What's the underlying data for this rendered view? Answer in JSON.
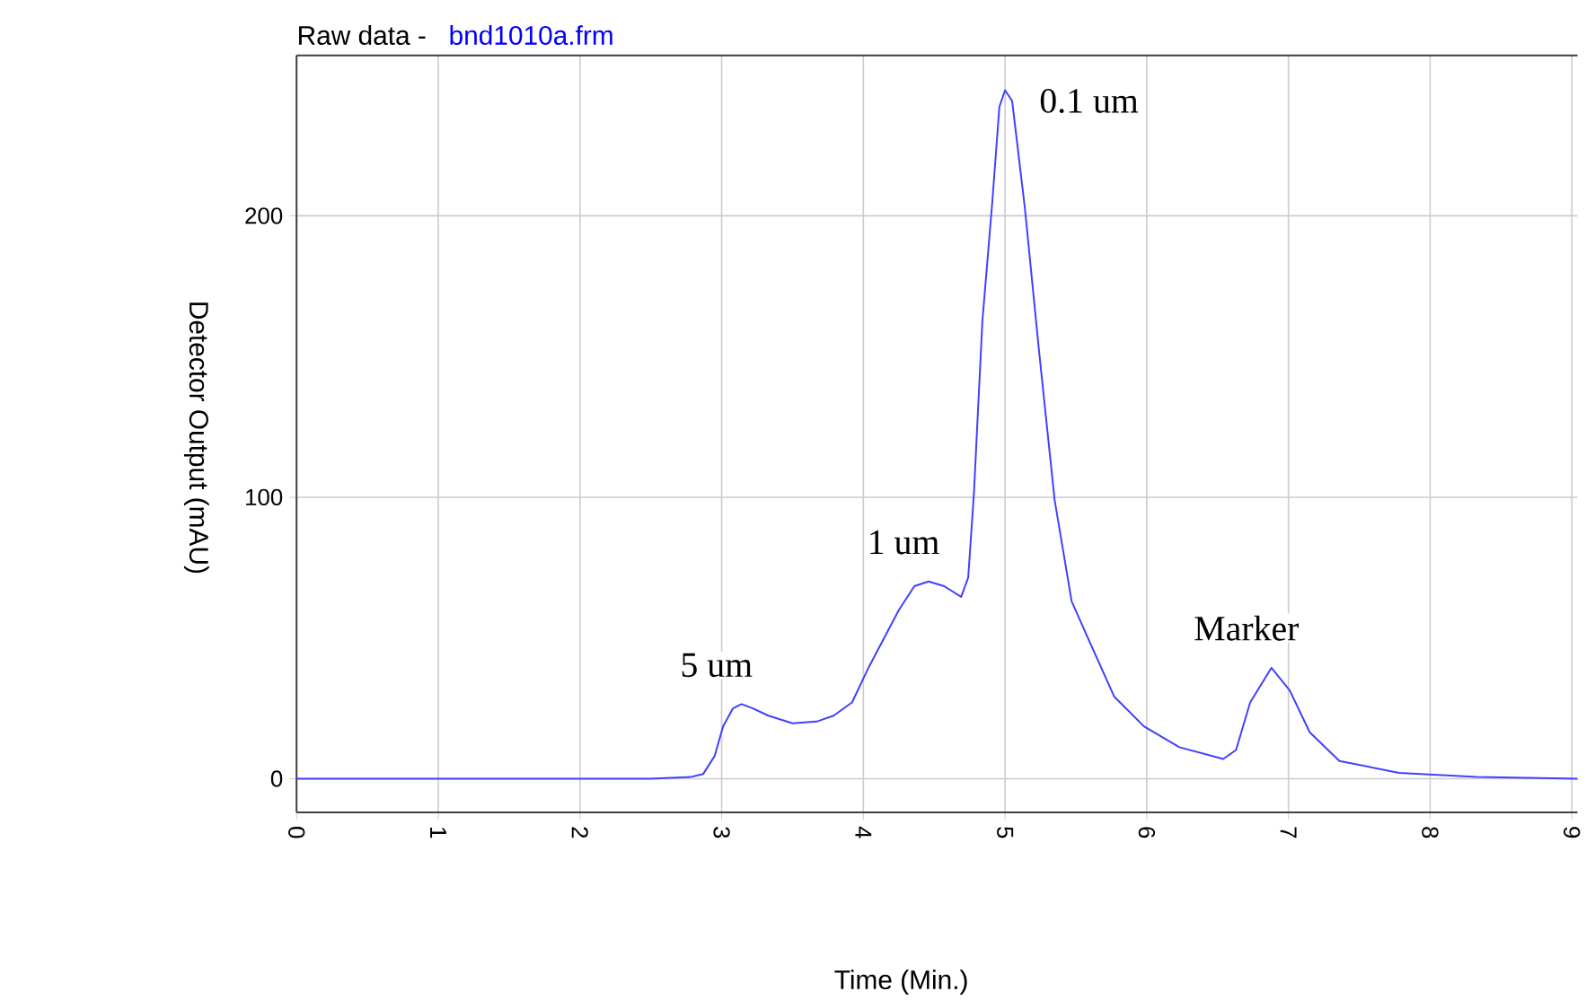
{
  "chart_data": {
    "type": "line",
    "title": "Raw data -",
    "subtitle": "bnd1010a.frm",
    "xlabel": "Time (Min.)",
    "ylabel": "Detector Output (mAU)",
    "series": [
      {
        "color": "#4040ff",
        "x": [
          0,
          2.5,
          2.78,
          2.87,
          2.95,
          3.01,
          3.08,
          3.14,
          3.22,
          3.33,
          3.5,
          3.67,
          3.79,
          3.92,
          4.04,
          4.25,
          4.36,
          4.46,
          4.57,
          4.69,
          4.74,
          4.78,
          4.84,
          4.91,
          4.96,
          5.0,
          5.05,
          5.14,
          5.24,
          5.35,
          5.47,
          5.6,
          5.77,
          5.98,
          6.23,
          6.54,
          6.63,
          6.73,
          6.88,
          7.01,
          7.15,
          7.36,
          7.78,
          8.33,
          9.04
        ],
        "values": [
          0,
          0,
          0.6,
          1.7,
          8,
          18.6,
          25,
          26.5,
          25,
          22.4,
          19.7,
          20.3,
          22.4,
          27.1,
          39.8,
          59.9,
          68.4,
          70.1,
          68.4,
          64.6,
          71.5,
          101,
          162.5,
          204.9,
          238.7,
          244.6,
          240.8,
          202.7,
          151.9,
          99,
          63,
          48.3,
          29.2,
          18.6,
          11.2,
          7,
          10.2,
          27.1,
          39.4,
          31.3,
          16.5,
          6.3,
          2.1,
          0.6,
          0
        ]
      }
    ],
    "xlim": [
      0,
      9.04
    ],
    "xticks": [
      0,
      1,
      2,
      3,
      4,
      5,
      6,
      7,
      8,
      9
    ],
    "ylim": [
      -12,
      257
    ],
    "yticks": [
      0,
      100,
      200
    ],
    "grid": true,
    "marker": "none",
    "line_style": "solid",
    "annotations": [
      {
        "text": "5 um",
        "x": 3.14,
        "y": 26.5
      },
      {
        "text": "1 um",
        "x": 4.46,
        "y": 70.1
      },
      {
        "text": "0.1 um",
        "x": 5.0,
        "y": 244.6
      },
      {
        "text": "Marker",
        "x": 6.88,
        "y": 39.4
      }
    ]
  }
}
